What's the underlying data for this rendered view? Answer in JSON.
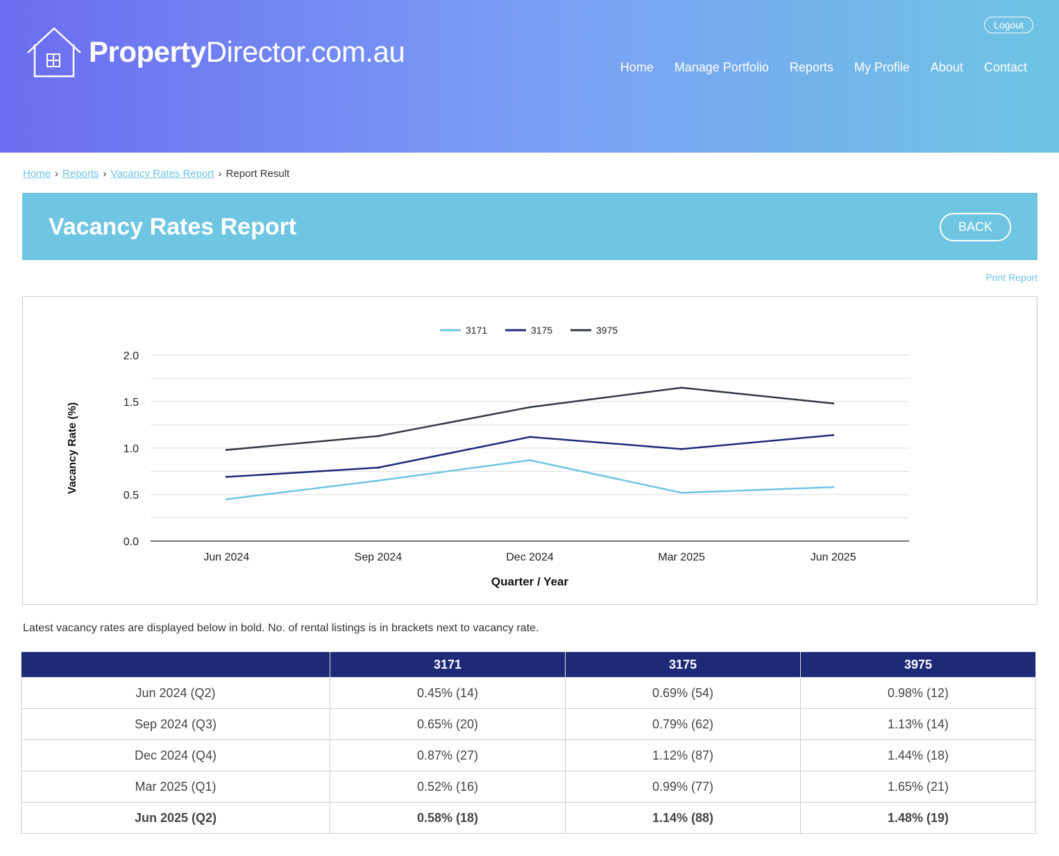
{
  "header": {
    "logo_bold": "Property",
    "logo_rest": "Director.com.au",
    "logout": "Logout",
    "nav": [
      "Home",
      "Manage Portfolio",
      "Reports",
      "My Profile",
      "About",
      "Contact"
    ]
  },
  "breadcrumb": [
    "Home",
    "Reports",
    "Vacancy Rates Report",
    "Report Result"
  ],
  "page": {
    "title": "Vacancy Rates Report",
    "back": "BACK",
    "print": "Print Report",
    "note": "Latest vacancy rates are displayed below in bold. No. of rental listings is in brackets next to vacancy rate."
  },
  "chart_data": {
    "type": "line",
    "categories": [
      "Jun 2024",
      "Sep 2024",
      "Dec 2024",
      "Mar 2025",
      "Jun 2025"
    ],
    "series": [
      {
        "name": "3171",
        "color": "#6ec5e3",
        "values": [
          0.45,
          0.65,
          0.87,
          0.52,
          0.58
        ]
      },
      {
        "name": "3175",
        "color": "#1e2a78",
        "values": [
          0.69,
          0.79,
          1.12,
          0.99,
          1.14
        ]
      },
      {
        "name": "3975",
        "color": "#333a44",
        "values": [
          0.98,
          1.13,
          1.44,
          1.65,
          1.48
        ]
      }
    ],
    "xlabel": "Quarter / Year",
    "ylabel": "Vacancy Rate (%)",
    "ylim": [
      0,
      2
    ],
    "yticks": [
      "0.0",
      "0.5",
      "1.0",
      "1.5",
      "2.0"
    ],
    "legend": "top",
    "grid": true
  },
  "table": {
    "headers": [
      "",
      "3171",
      "3175",
      "3975"
    ],
    "rows": [
      [
        "Jun 2024 (Q2)",
        "0.45% (14)",
        "0.69% (54)",
        "0.98% (12)"
      ],
      [
        "Sep 2024 (Q3)",
        "0.65% (20)",
        "0.79% (62)",
        "1.13% (14)"
      ],
      [
        "Dec 2024 (Q4)",
        "0.87% (27)",
        "1.12% (87)",
        "1.44% (18)"
      ],
      [
        "Mar 2025 (Q1)",
        "0.52% (16)",
        "0.99% (77)",
        "1.65% (21)"
      ],
      [
        "Jun 2025 (Q2)",
        "0.58% (18)",
        "1.14% (88)",
        "1.48% (19)"
      ]
    ]
  }
}
